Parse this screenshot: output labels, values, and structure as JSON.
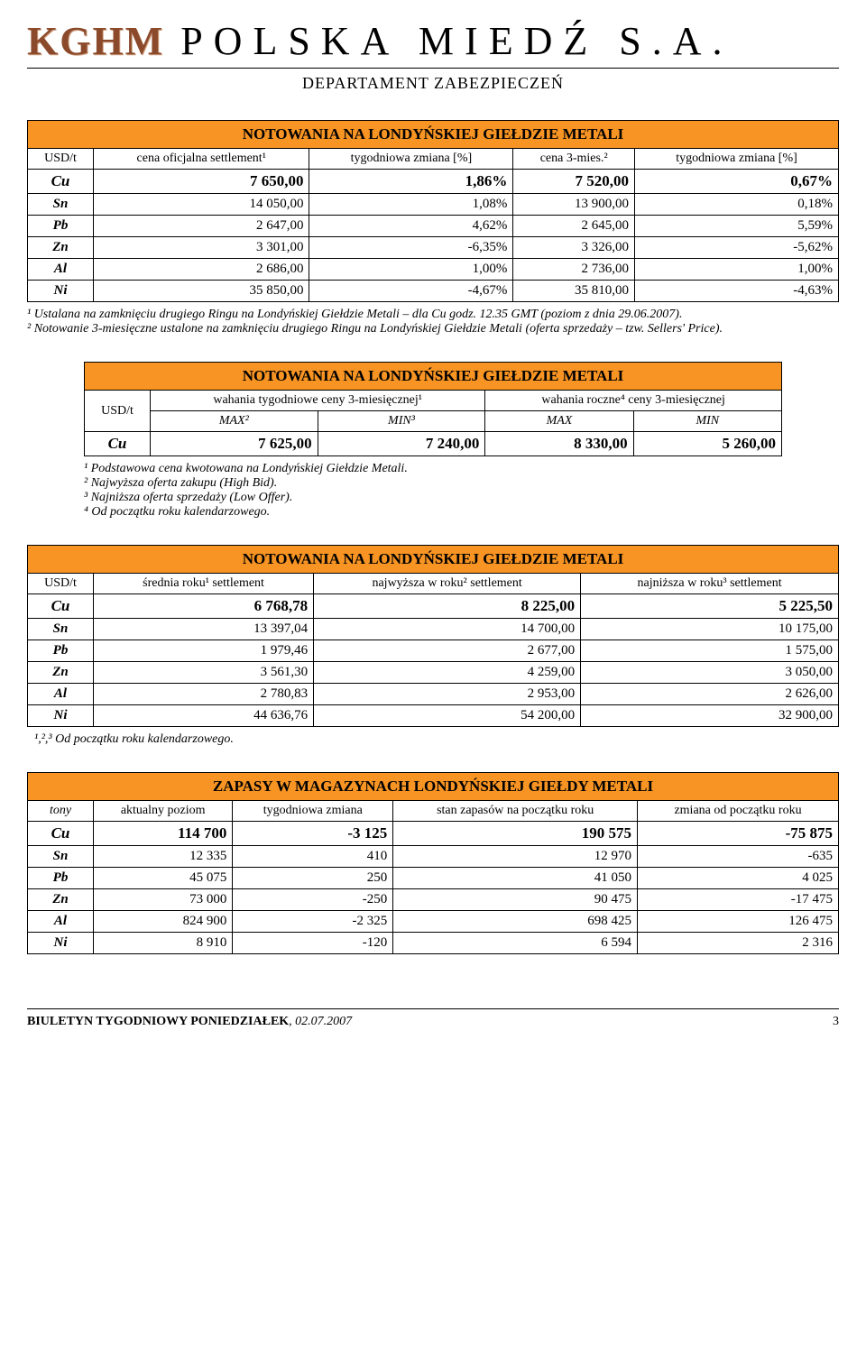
{
  "header": {
    "logo_bold": "KGHM",
    "logo_rest": "POLSKA MIEDŹ S.A.",
    "department": "DEPARTAMENT ZABEZPIECZEŃ"
  },
  "table1": {
    "title": "NOTOWANIA NA LONDYŃSKIEJ GIEŁDZIE METALI",
    "col_unit": "USD/t",
    "col_a": "cena oficjalna settlement¹",
    "col_b": "tygodniowa zmiana [%]",
    "col_c": "cena 3-mies.²",
    "col_d": "tygodniowa zmiana [%]",
    "rows": [
      {
        "m": "Cu",
        "a": "7 650,00",
        "b": "1,86%",
        "c": "7 520,00",
        "d": "0,67%",
        "big": true
      },
      {
        "m": "Sn",
        "a": "14 050,00",
        "b": "1,08%",
        "c": "13 900,00",
        "d": "0,18%"
      },
      {
        "m": "Pb",
        "a": "2 647,00",
        "b": "4,62%",
        "c": "2 645,00",
        "d": "5,59%"
      },
      {
        "m": "Zn",
        "a": "3 301,00",
        "b": "-6,35%",
        "c": "3 326,00",
        "d": "-5,62%"
      },
      {
        "m": "Al",
        "a": "2 686,00",
        "b": "1,00%",
        "c": "2 736,00",
        "d": "1,00%"
      },
      {
        "m": "Ni",
        "a": "35 850,00",
        "b": "-4,67%",
        "c": "35 810,00",
        "d": "-4,63%"
      }
    ],
    "foot1": "¹ Ustalana na zamknięciu drugiego Ringu na Londyńskiej Giełdzie Metali – dla Cu godz. 12.35 GMT (poziom z dnia 29.06.2007).",
    "foot2": "² Notowanie 3-miesięczne ustalone na zamknięciu drugiego Ringu na Londyńskiej Giełdzie Metali (oferta sprzedaży – tzw. Sellers' Price)."
  },
  "table2": {
    "title": "NOTOWANIA NA LONDYŃSKIEJ GIEŁDZIE METALI",
    "col_unit": "USD/t",
    "group_a": "wahania tygodniowe ceny 3-miesięcznej¹",
    "group_b": "wahania roczne⁴ ceny 3-miesięcznej",
    "sub_max": "MAX²",
    "sub_min": "MIN³",
    "sub_max2": "MAX",
    "sub_min2": "MIN",
    "row": {
      "m": "Cu",
      "a": "7 625,00",
      "b": "7 240,00",
      "c": "8 330,00",
      "d": "5 260,00"
    },
    "foot1": "¹ Podstawowa cena kwotowana na Londyńskiej Giełdzie Metali.",
    "foot2": "² Najwyższa oferta zakupu (High Bid).",
    "foot3": "³ Najniższa oferta sprzedaży (Low Offer).",
    "foot4": "⁴ Od początku roku kalendarzowego."
  },
  "table3": {
    "title": "NOTOWANIA NA LONDYŃSKIEJ GIEŁDZIE METALI",
    "col_unit": "USD/t",
    "col_a": "średnia roku¹ settlement",
    "col_b": "najwyższa w roku² settlement",
    "col_c": "najniższa w roku³ settlement",
    "rows": [
      {
        "m": "Cu",
        "a": "6 768,78",
        "b": "8 225,00",
        "c": "5 225,50",
        "big": true
      },
      {
        "m": "Sn",
        "a": "13 397,04",
        "b": "14 700,00",
        "c": "10 175,00"
      },
      {
        "m": "Pb",
        "a": "1 979,46",
        "b": "2 677,00",
        "c": "1 575,00"
      },
      {
        "m": "Zn",
        "a": "3 561,30",
        "b": "4 259,00",
        "c": "3 050,00"
      },
      {
        "m": "Al",
        "a": "2 780,83",
        "b": "2 953,00",
        "c": "2 626,00"
      },
      {
        "m": "Ni",
        "a": "44 636,76",
        "b": "54 200,00",
        "c": "32 900,00"
      }
    ],
    "foot": "¹,²,³ Od początku roku kalendarzowego."
  },
  "table4": {
    "title": "ZAPASY W MAGAZYNACH LONDYŃSKIEJ GIEŁDY METALI",
    "col_unit": "tony",
    "col_a": "aktualny poziom",
    "col_b": "tygodniowa zmiana",
    "col_c": "stan zapasów na początku roku",
    "col_d": "zmiana od początku roku",
    "rows": [
      {
        "m": "Cu",
        "a": "114 700",
        "b": "-3 125",
        "c": "190 575",
        "d": "-75 875",
        "big": true
      },
      {
        "m": "Sn",
        "a": "12 335",
        "b": "410",
        "c": "12 970",
        "d": "-635"
      },
      {
        "m": "Pb",
        "a": "45 075",
        "b": "250",
        "c": "41 050",
        "d": "4 025"
      },
      {
        "m": "Zn",
        "a": "73 000",
        "b": "-250",
        "c": "90 475",
        "d": "-17 475"
      },
      {
        "m": "Al",
        "a": "824 900",
        "b": "-2 325",
        "c": "698 425",
        "d": "126 475"
      },
      {
        "m": "Ni",
        "a": "8 910",
        "b": "-120",
        "c": "6 594",
        "d": "2 316"
      }
    ]
  },
  "footer": {
    "left_bold": "BIULETYN TYGODNIOWY  PONIEDZIAŁEK",
    "left_date": ", 02.07.2007",
    "page": "3"
  }
}
